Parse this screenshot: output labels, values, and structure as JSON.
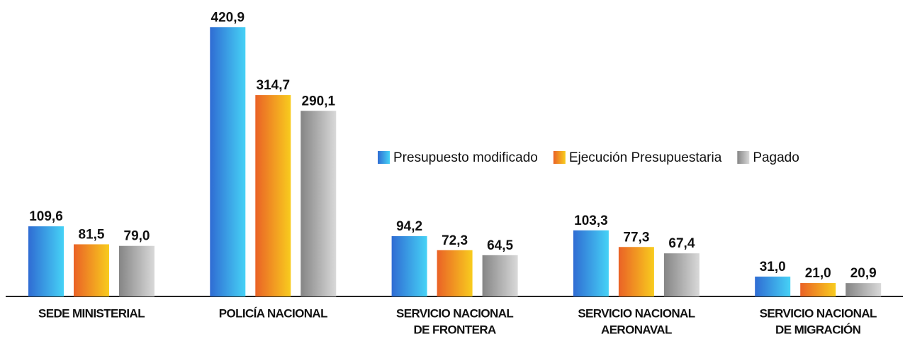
{
  "chart_data": {
    "type": "bar",
    "categories": [
      [
        "SEDE MINISTERIAL"
      ],
      [
        "POLICÍA NACIONAL"
      ],
      [
        "SERVICIO NACIONAL",
        "DE FRONTERA"
      ],
      [
        "SERVICIO NACIONAL",
        "AERONAVAL"
      ],
      [
        "SERVICIO NACIONAL",
        "DE MIGRACIÓN"
      ]
    ],
    "series": [
      {
        "name": "Presupuesto modificado",
        "colors": [
          "#2f6cd3",
          "#46d2f6"
        ],
        "values": [
          109.6,
          420.9,
          94.2,
          103.3,
          31.0
        ],
        "value_labels": [
          "109,6",
          "420,9",
          "94,2",
          "103,3",
          "31,0"
        ]
      },
      {
        "name": "Ejecución Presupuestaria",
        "colors": [
          "#ea6226",
          "#f8cc1e"
        ],
        "values": [
          81.5,
          314.7,
          72.3,
          77.3,
          21.0
        ],
        "value_labels": [
          "81,5",
          "314,7",
          "72,3",
          "77,3",
          "21,0"
        ]
      },
      {
        "name": "Pagado",
        "colors": [
          "#858585",
          "#d9d9d9"
        ],
        "values": [
          79.0,
          290.1,
          64.5,
          67.4,
          20.9
        ],
        "value_labels": [
          "79,0",
          "290,1",
          "64,5",
          "67,4",
          "20,9"
        ]
      }
    ],
    "ylim": [
      0,
      450
    ],
    "grid": false
  }
}
